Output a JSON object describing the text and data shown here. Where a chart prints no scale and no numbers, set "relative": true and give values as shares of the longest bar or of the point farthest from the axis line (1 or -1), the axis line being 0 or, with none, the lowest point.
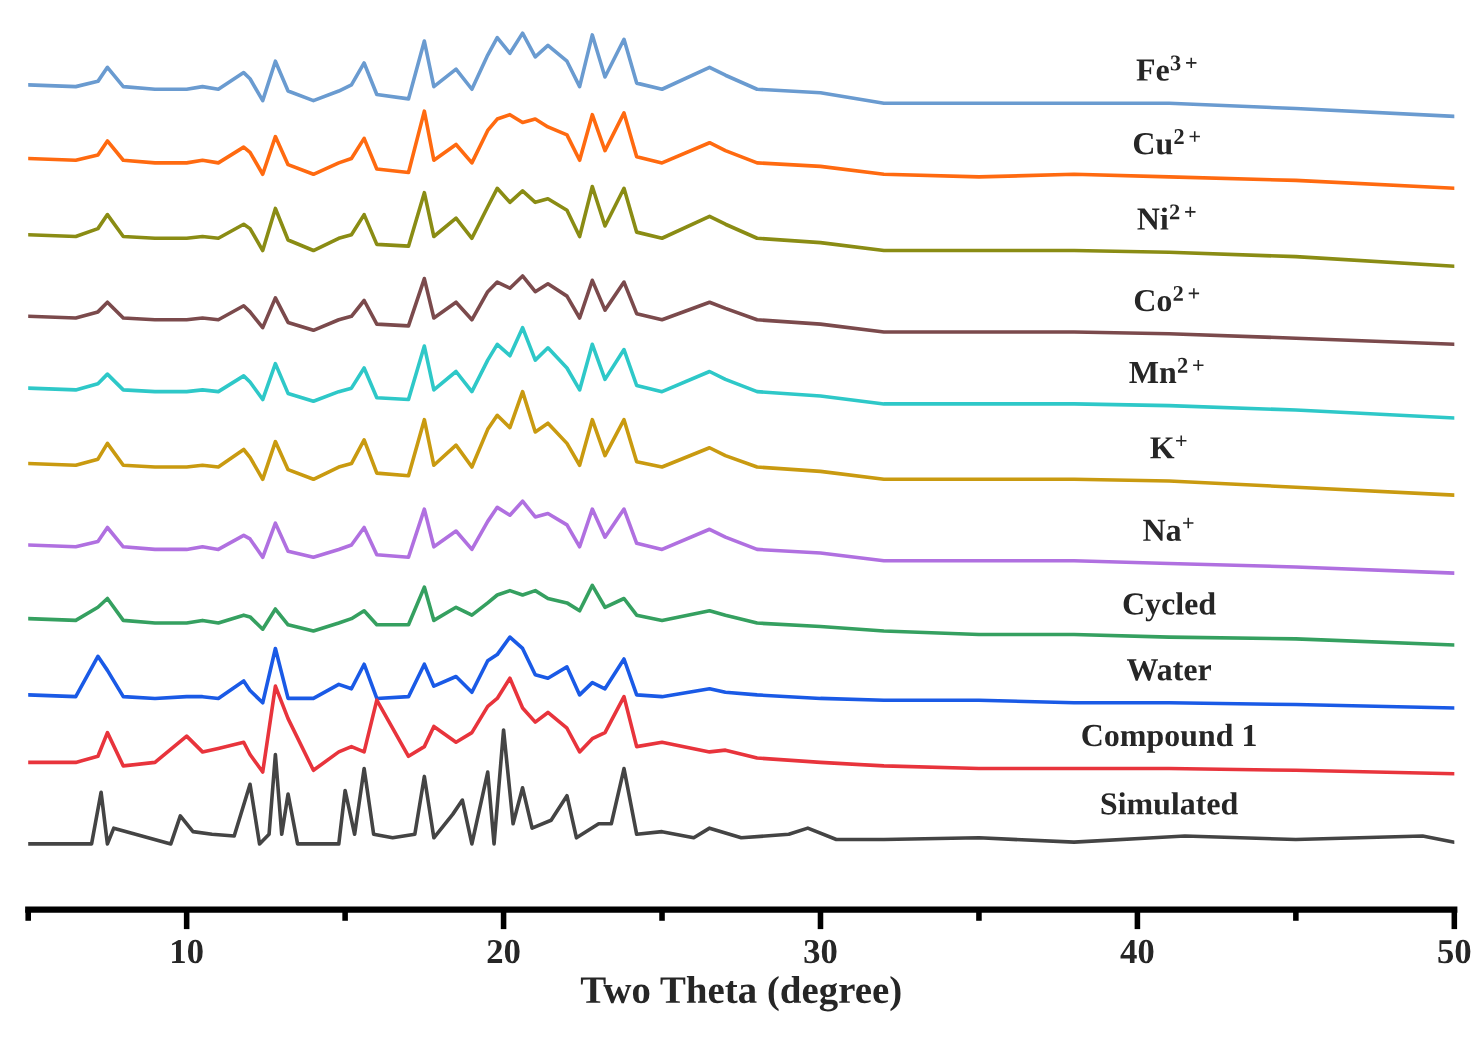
{
  "chart_data": {
    "type": "line",
    "relative": true,
    "xlabel": "Two Theta (degree)",
    "xlim": [
      5,
      50
    ],
    "xticks": [
      {
        "value": 5,
        "label": null
      },
      10,
      {
        "value": 15,
        "label": null
      },
      20,
      {
        "value": 25,
        "label": null
      },
      30,
      {
        "value": 35,
        "label": null
      },
      40,
      {
        "value": 45,
        "label": null
      },
      50
    ],
    "tick_labels": "x",
    "x": [
      5,
      6.5,
      7.2,
      7.5,
      8,
      9,
      10,
      10.5,
      11,
      11.8,
      12,
      12.4,
      12.8,
      13.2,
      14,
      14.8,
      15.2,
      15.6,
      16,
      17,
      17.5,
      17.8,
      18.5,
      19,
      19.5,
      19.8,
      20.2,
      20.6,
      21,
      21.4,
      22,
      22.4,
      22.8,
      23.2,
      23.8,
      24.2,
      25,
      26.5,
      27,
      28,
      30,
      32,
      35,
      38,
      41,
      45,
      50
    ],
    "series": [
      {
        "name": "Fe$^{3+}$",
        "color": "#6a9bd0",
        "values": [
          0.941,
          0.939,
          0.945,
          0.961,
          0.939,
          0.936,
          0.936,
          0.939,
          0.936,
          0.955,
          0.948,
          0.923,
          0.968,
          0.934,
          0.923,
          0.934,
          0.941,
          0.966,
          0.93,
          0.925,
          0.991,
          0.939,
          0.959,
          0.936,
          0.975,
          0.995,
          0.977,
          1.0,
          0.973,
          0.986,
          0.968,
          0.939,
          0.998,
          0.95,
          0.993,
          0.943,
          0.936,
          0.961,
          0.952,
          0.936,
          0.932,
          0.92,
          0.92,
          0.92,
          0.92,
          0.914,
          0.905
        ]
      },
      {
        "name": "Cu$^{2+}$",
        "color": "#ff6a10",
        "values": [
          0.857,
          0.855,
          0.861,
          0.877,
          0.855,
          0.852,
          0.852,
          0.855,
          0.852,
          0.87,
          0.864,
          0.839,
          0.882,
          0.85,
          0.839,
          0.852,
          0.857,
          0.88,
          0.845,
          0.841,
          0.911,
          0.855,
          0.873,
          0.852,
          0.889,
          0.902,
          0.907,
          0.898,
          0.902,
          0.893,
          0.884,
          0.855,
          0.907,
          0.866,
          0.909,
          0.859,
          0.852,
          0.875,
          0.866,
          0.852,
          0.848,
          0.839,
          0.836,
          0.839,
          0.836,
          0.832,
          0.823
        ]
      },
      {
        "name": "Ni$^{2+}$",
        "color": "#8a8c14",
        "values": [
          0.77,
          0.768,
          0.777,
          0.793,
          0.768,
          0.766,
          0.766,
          0.768,
          0.766,
          0.782,
          0.777,
          0.752,
          0.8,
          0.764,
          0.752,
          0.766,
          0.77,
          0.793,
          0.759,
          0.757,
          0.818,
          0.768,
          0.789,
          0.766,
          0.802,
          0.823,
          0.807,
          0.82,
          0.807,
          0.811,
          0.798,
          0.768,
          0.825,
          0.78,
          0.823,
          0.773,
          0.766,
          0.791,
          0.782,
          0.766,
          0.761,
          0.752,
          0.752,
          0.752,
          0.75,
          0.745,
          0.734
        ]
      },
      {
        "name": "Co$^{2+}$",
        "color": "#7b4a4c",
        "values": [
          0.677,
          0.675,
          0.682,
          0.693,
          0.675,
          0.673,
          0.673,
          0.675,
          0.673,
          0.689,
          0.682,
          0.664,
          0.698,
          0.67,
          0.661,
          0.673,
          0.677,
          0.695,
          0.668,
          0.666,
          0.72,
          0.675,
          0.693,
          0.673,
          0.705,
          0.716,
          0.709,
          0.723,
          0.705,
          0.714,
          0.7,
          0.675,
          0.718,
          0.684,
          0.716,
          0.68,
          0.673,
          0.693,
          0.686,
          0.673,
          0.668,
          0.659,
          0.659,
          0.659,
          0.657,
          0.652,
          0.645
        ]
      },
      {
        "name": "Mn$^{2+}$",
        "color": "#2ec8c8",
        "values": [
          0.595,
          0.593,
          0.6,
          0.611,
          0.593,
          0.591,
          0.591,
          0.593,
          0.591,
          0.609,
          0.602,
          0.582,
          0.623,
          0.589,
          0.58,
          0.591,
          0.595,
          0.618,
          0.584,
          0.582,
          0.643,
          0.593,
          0.614,
          0.591,
          0.627,
          0.645,
          0.632,
          0.664,
          0.627,
          0.641,
          0.618,
          0.593,
          0.645,
          0.605,
          0.639,
          0.598,
          0.591,
          0.614,
          0.605,
          0.591,
          0.586,
          0.577,
          0.577,
          0.577,
          0.575,
          0.57,
          0.561
        ]
      },
      {
        "name": "K$^{+}$",
        "color": "#c99a10",
        "values": [
          0.509,
          0.507,
          0.514,
          0.532,
          0.507,
          0.505,
          0.505,
          0.507,
          0.505,
          0.525,
          0.516,
          0.491,
          0.534,
          0.502,
          0.491,
          0.505,
          0.509,
          0.536,
          0.498,
          0.495,
          0.559,
          0.507,
          0.53,
          0.505,
          0.548,
          0.564,
          0.55,
          0.591,
          0.545,
          0.555,
          0.532,
          0.507,
          0.559,
          0.518,
          0.559,
          0.511,
          0.505,
          0.527,
          0.518,
          0.505,
          0.5,
          0.491,
          0.491,
          0.491,
          0.489,
          0.482,
          0.473
        ]
      },
      {
        "name": "Na$^{+}$",
        "color": "#b070e0",
        "values": [
          0.416,
          0.414,
          0.42,
          0.436,
          0.414,
          0.411,
          0.411,
          0.414,
          0.411,
          0.427,
          0.423,
          0.402,
          0.441,
          0.409,
          0.402,
          0.411,
          0.416,
          0.436,
          0.405,
          0.402,
          0.457,
          0.414,
          0.432,
          0.411,
          0.443,
          0.459,
          0.45,
          0.466,
          0.448,
          0.452,
          0.439,
          0.414,
          0.457,
          0.425,
          0.457,
          0.418,
          0.411,
          0.434,
          0.425,
          0.411,
          0.407,
          0.398,
          0.398,
          0.398,
          0.395,
          0.391,
          0.384
        ]
      },
      {
        "name": "Cycled",
        "color": "#35a060",
        "values": [
          0.332,
          0.33,
          0.345,
          0.355,
          0.33,
          0.327,
          0.327,
          0.33,
          0.327,
          0.336,
          0.334,
          0.32,
          0.343,
          0.325,
          0.318,
          0.327,
          0.332,
          0.341,
          0.325,
          0.325,
          0.368,
          0.33,
          0.345,
          0.336,
          0.35,
          0.359,
          0.364,
          0.359,
          0.364,
          0.355,
          0.35,
          0.341,
          0.37,
          0.345,
          0.355,
          0.336,
          0.33,
          0.341,
          0.336,
          0.327,
          0.323,
          0.318,
          0.314,
          0.314,
          0.311,
          0.309,
          0.302
        ]
      },
      {
        "name": "Water",
        "color": "#1a5ae6",
        "values": [
          0.245,
          0.243,
          0.289,
          0.273,
          0.243,
          0.241,
          0.243,
          0.243,
          0.241,
          0.261,
          0.25,
          0.236,
          0.298,
          0.241,
          0.241,
          0.257,
          0.252,
          0.28,
          0.241,
          0.243,
          0.28,
          0.255,
          0.266,
          0.248,
          0.284,
          0.291,
          0.311,
          0.298,
          0.268,
          0.264,
          0.277,
          0.245,
          0.259,
          0.252,
          0.286,
          0.245,
          0.243,
          0.252,
          0.248,
          0.245,
          0.241,
          0.239,
          0.239,
          0.236,
          0.236,
          0.234,
          0.23
        ]
      },
      {
        "name": "Compound 1",
        "color": "#e8343c",
        "values": [
          0.168,
          0.168,
          0.175,
          0.202,
          0.164,
          0.168,
          0.198,
          0.18,
          0.184,
          0.191,
          0.177,
          0.157,
          0.255,
          0.218,
          0.159,
          0.18,
          0.186,
          0.18,
          0.239,
          0.175,
          0.186,
          0.209,
          0.191,
          0.202,
          0.232,
          0.241,
          0.264,
          0.23,
          0.214,
          0.225,
          0.207,
          0.18,
          0.195,
          0.202,
          0.243,
          0.186,
          0.191,
          0.18,
          0.182,
          0.173,
          0.168,
          0.164,
          0.161,
          0.161,
          0.161,
          0.159,
          0.155
        ]
      },
      {
        "name": "Simulated",
        "color": "#444444",
        "x": [
          5,
          7.0,
          7.3,
          7.5,
          7.7,
          9.5,
          9.8,
          10.2,
          10.8,
          11.5,
          12.0,
          12.3,
          12.6,
          12.8,
          13.0,
          13.2,
          13.5,
          14.2,
          14.8,
          15.0,
          15.3,
          15.6,
          15.9,
          16.5,
          17.2,
          17.5,
          17.8,
          18.4,
          18.7,
          19.0,
          19.5,
          19.7,
          20.0,
          20.3,
          20.6,
          20.9,
          21.5,
          22.0,
          22.3,
          23.0,
          23.4,
          23.8,
          24.2,
          25.0,
          26.0,
          26.5,
          27.5,
          29.0,
          29.6,
          30.5,
          32,
          35,
          38,
          40.5,
          41.5,
          45,
          49,
          50
        ],
        "values": [
          0.075,
          0.075,
          0.134,
          0.075,
          0.093,
          0.075,
          0.107,
          0.089,
          0.086,
          0.084,
          0.143,
          0.075,
          0.086,
          0.177,
          0.086,
          0.132,
          0.075,
          0.075,
          0.075,
          0.136,
          0.086,
          0.161,
          0.086,
          0.082,
          0.086,
          0.152,
          0.082,
          0.109,
          0.125,
          0.075,
          0.157,
          0.075,
          0.205,
          0.098,
          0.139,
          0.093,
          0.102,
          0.13,
          0.082,
          0.098,
          0.098,
          0.161,
          0.086,
          0.089,
          0.082,
          0.093,
          0.082,
          0.086,
          0.093,
          0.08,
          0.08,
          0.082,
          0.077,
          0.082,
          0.084,
          0.08,
          0.084,
          0.077
        ]
      }
    ]
  }
}
